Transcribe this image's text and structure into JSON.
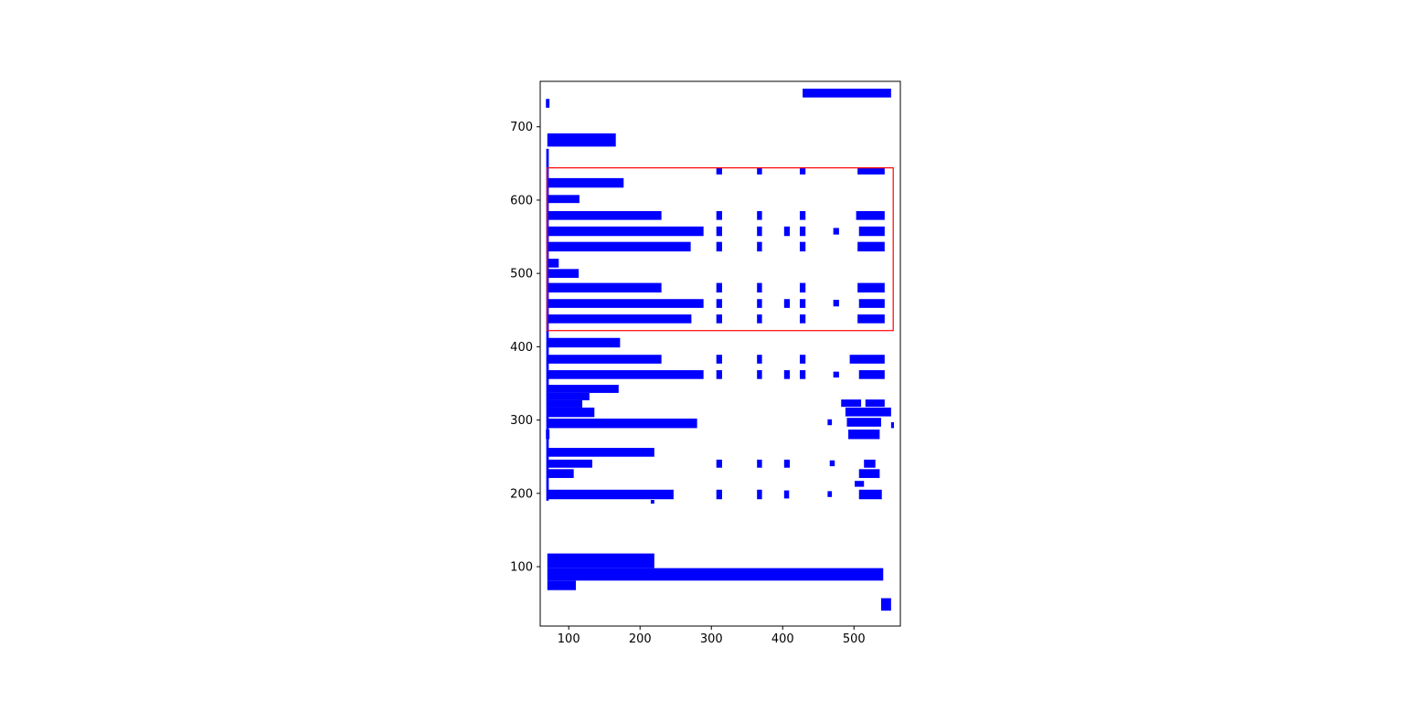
{
  "figure": {
    "background": "#ffffff",
    "bar_color": "#0000ff",
    "highlight_color": "#ff0000",
    "axis_color": "#000000"
  },
  "chart_data": {
    "type": "rectangles",
    "title": "",
    "xlabel": "",
    "ylabel": "",
    "grid": false,
    "legend": "none",
    "xlim": [
      60,
      565
    ],
    "ylim": [
      19,
      762
    ],
    "xticks": [
      100,
      200,
      300,
      400,
      500
    ],
    "yticks": [
      100,
      200,
      300,
      400,
      500,
      600,
      700
    ],
    "highlight_rect": [
      70,
      422,
      555,
      644
    ],
    "rects": [
      [
        428,
        740,
        552,
        752
      ],
      [
        68,
        726,
        73,
        738
      ],
      [
        70,
        673,
        166,
        691
      ],
      [
        68.5,
        190,
        72,
        670
      ],
      [
        307,
        635,
        315,
        644
      ],
      [
        364,
        635,
        371,
        644
      ],
      [
        424,
        635,
        432,
        644
      ],
      [
        505,
        635,
        543,
        644
      ],
      [
        70,
        617,
        177,
        630
      ],
      [
        70,
        596,
        115,
        607
      ],
      [
        70,
        573,
        230,
        585
      ],
      [
        307,
        573,
        315,
        585
      ],
      [
        364,
        573,
        371,
        585
      ],
      [
        424,
        573,
        432,
        585
      ],
      [
        503,
        573,
        543,
        585
      ],
      [
        70,
        551,
        289,
        564
      ],
      [
        307,
        551,
        315,
        564
      ],
      [
        364,
        551,
        371,
        564
      ],
      [
        402,
        551,
        410,
        564
      ],
      [
        424,
        551,
        432,
        564
      ],
      [
        471,
        553,
        479,
        562
      ],
      [
        507,
        551,
        543,
        564
      ],
      [
        70,
        530,
        271,
        543
      ],
      [
        307,
        530,
        315,
        543
      ],
      [
        364,
        530,
        371,
        543
      ],
      [
        424,
        530,
        432,
        543
      ],
      [
        505,
        530,
        543,
        543
      ],
      [
        70,
        508,
        86,
        520
      ],
      [
        70,
        494,
        114,
        506
      ],
      [
        70,
        474,
        230,
        487
      ],
      [
        307,
        474,
        315,
        487
      ],
      [
        364,
        474,
        371,
        487
      ],
      [
        424,
        474,
        432,
        487
      ],
      [
        505,
        474,
        543,
        487
      ],
      [
        70,
        453,
        289,
        465
      ],
      [
        307,
        453,
        315,
        465
      ],
      [
        364,
        453,
        371,
        465
      ],
      [
        402,
        453,
        410,
        465
      ],
      [
        424,
        453,
        432,
        465
      ],
      [
        471,
        455,
        479,
        464
      ],
      [
        507,
        453,
        543,
        465
      ],
      [
        70,
        432,
        272,
        444
      ],
      [
        307,
        432,
        315,
        444
      ],
      [
        364,
        432,
        371,
        444
      ],
      [
        424,
        432,
        432,
        444
      ],
      [
        505,
        432,
        543,
        444
      ],
      [
        70,
        399,
        172,
        412
      ],
      [
        70,
        377,
        230,
        389
      ],
      [
        307,
        377,
        315,
        389
      ],
      [
        364,
        377,
        371,
        389
      ],
      [
        424,
        377,
        432,
        389
      ],
      [
        494,
        377,
        543,
        389
      ],
      [
        70,
        356,
        289,
        368
      ],
      [
        307,
        356,
        315,
        368
      ],
      [
        364,
        356,
        371,
        368
      ],
      [
        402,
        356,
        410,
        368
      ],
      [
        424,
        356,
        432,
        368
      ],
      [
        471,
        358,
        479,
        366
      ],
      [
        507,
        356,
        543,
        368
      ],
      [
        70,
        337,
        170,
        348
      ],
      [
        70,
        327,
        129,
        337
      ],
      [
        70,
        317,
        119,
        327
      ],
      [
        482,
        318,
        510,
        328
      ],
      [
        516,
        318,
        543,
        328
      ],
      [
        70,
        304,
        136,
        317
      ],
      [
        488,
        305,
        552,
        317
      ],
      [
        70,
        289,
        280,
        302
      ],
      [
        463,
        293,
        469,
        301
      ],
      [
        490,
        291,
        538,
        303
      ],
      [
        552,
        289,
        556,
        297
      ],
      [
        68,
        274,
        73,
        287
      ],
      [
        492,
        274,
        536,
        287
      ],
      [
        70,
        250,
        220,
        262
      ],
      [
        70,
        235,
        133,
        246
      ],
      [
        307,
        235,
        315,
        246
      ],
      [
        364,
        235,
        371,
        246
      ],
      [
        402,
        235,
        410,
        246
      ],
      [
        466,
        237,
        473,
        245
      ],
      [
        514,
        235,
        530,
        246
      ],
      [
        70,
        221,
        107,
        233
      ],
      [
        507,
        221,
        536,
        233
      ],
      [
        501,
        209,
        514,
        217
      ],
      [
        70,
        192,
        247,
        205
      ],
      [
        307,
        192,
        315,
        205
      ],
      [
        364,
        192,
        371,
        205
      ],
      [
        402,
        193,
        409,
        204
      ],
      [
        463,
        195,
        469,
        203
      ],
      [
        507,
        192,
        539,
        205
      ],
      [
        215,
        186,
        220,
        191
      ],
      [
        70,
        98,
        220,
        118
      ],
      [
        70,
        81,
        541,
        98
      ],
      [
        70,
        68,
        110,
        81
      ],
      [
        538,
        40,
        552,
        57
      ]
    ]
  }
}
